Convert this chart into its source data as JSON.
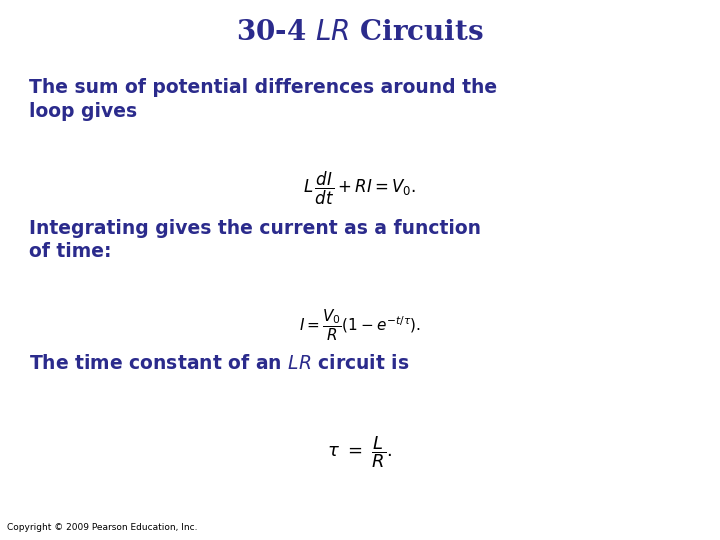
{
  "title": "30-4 $LR$ Circuits",
  "title_color": "#2B2B8C",
  "title_fontsize": 20,
  "background_color": "#FFFFFF",
  "text_color": "#2B2B8C",
  "body_fontsize": 13.5,
  "eq1_fontsize": 12,
  "eq2_fontsize": 11,
  "eq3_fontsize": 13,
  "copyright": "Copyright © 2009 Pearson Education, Inc.",
  "copyright_fontsize": 6.5,
  "para1": "The sum of potential differences around the\nloop gives",
  "eq1": "$L\\,\\dfrac{dI}{dt} + RI = V_0.$",
  "para2": "Integrating gives the current as a function\nof time:",
  "eq2": "$I = \\dfrac{V_0}{R}(1 - e^{-t/\\tau}).$",
  "para3": "The time constant of an $LR$ circuit is",
  "eq3": "$\\tau \\ = \\ \\dfrac{L}{R}.$"
}
